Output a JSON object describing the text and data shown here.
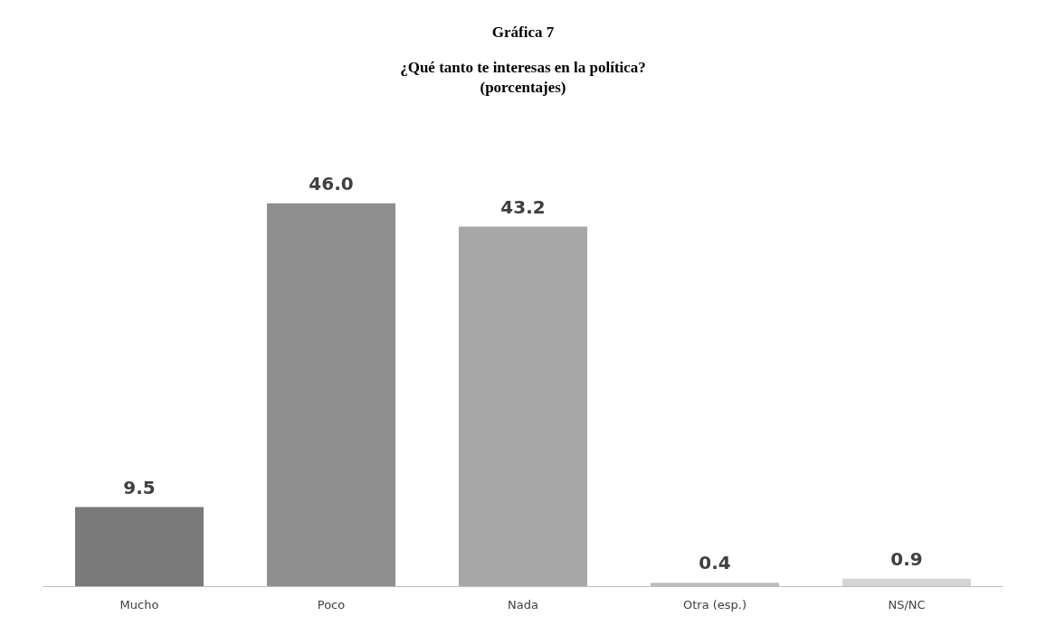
{
  "chart_data": {
    "type": "bar",
    "title": "Gráfica 7",
    "subtitle": "¿Qué tanto te interesas en la política?\n(porcentajes)",
    "categories": [
      "Mucho",
      "Poco",
      "Nada",
      "Otra (esp.)",
      "NS/NC"
    ],
    "values": [
      9.5,
      46.0,
      43.2,
      0.4,
      0.9
    ],
    "value_labels": [
      "9.5",
      "46.0",
      "43.2",
      "0.4",
      "0.9"
    ],
    "colors": [
      "#7a7a7a",
      "#8f8f8f",
      "#a7a7a7",
      "#bdbdbd",
      "#d4d4d4"
    ]
  }
}
